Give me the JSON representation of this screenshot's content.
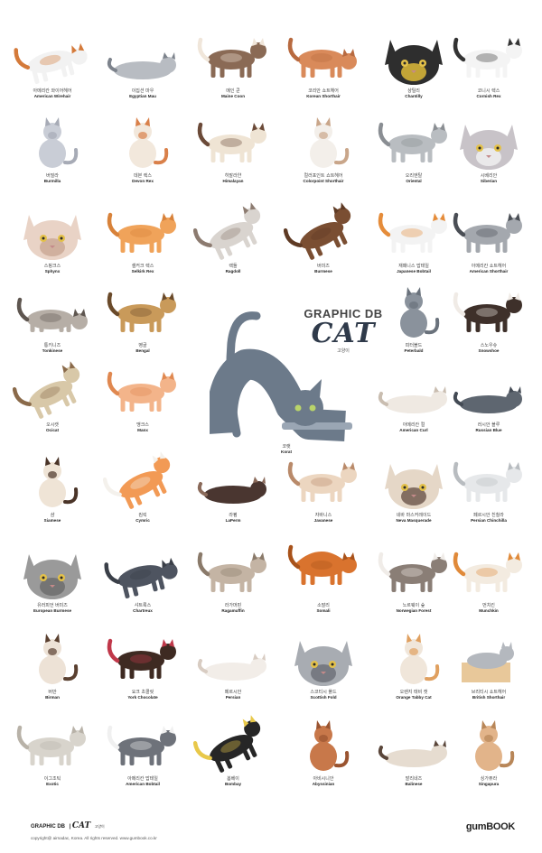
{
  "title": {
    "line1": "GRAPHIC DB",
    "line2": "CAT",
    "line3": "고양이"
  },
  "footer": {
    "brand": "GRAPHIC DB",
    "brand_cat": "CAT",
    "brand_ko": "고양이",
    "copyright": "copyright@ airnadac, Korea. All rights reserved.   www.gumbook.co.kr",
    "publisher": "gumBOOK"
  },
  "cats": [
    {
      "ko": "아메리칸 와이어헤어",
      "en": "American Wirehair",
      "body": "#f2f2f2",
      "accent": "#d47a3a",
      "pose": "stretch"
    },
    {
      "ko": "이집션 마우",
      "en": "Egyptian Mau",
      "body": "#b8bcc2",
      "accent": "#7d838c",
      "pose": "lie"
    },
    {
      "ko": "메인 쿤",
      "en": "Maine Coon",
      "body": "#8a6a55",
      "accent": "#f0e6da",
      "pose": "stand"
    },
    {
      "ko": "코리안 쇼트헤어",
      "en": "Korean Shorthair",
      "body": "#d98a5a",
      "accent": "#b86a40",
      "pose": "sniff"
    },
    {
      "ko": "샹틸리",
      "en": "Chantilly",
      "body": "#2e2e2e",
      "accent": "#e8c33a",
      "pose": "face"
    },
    {
      "ko": "코니시 렉스",
      "en": "Cornish Rex",
      "body": "#f4f4f4",
      "accent": "#333333",
      "pose": "stand"
    },
    {
      "ko": "버밀라",
      "en": "Burmilla",
      "body": "#c9cdd6",
      "accent": "#a7abb6",
      "pose": "sit"
    },
    {
      "ko": "데본 렉스",
      "en": "Devon Rex",
      "body": "#f2e8dc",
      "accent": "#d9804a",
      "pose": "sit"
    },
    {
      "ko": "히말라얀",
      "en": "Himalayan",
      "body": "#efe4d4",
      "accent": "#6b4a38",
      "pose": "stand"
    },
    {
      "ko": "컬러포인트 쇼트헤어",
      "en": "Colorpoint Shorthair",
      "body": "#f3efea",
      "accent": "#c9a68a",
      "pose": "sit"
    },
    {
      "ko": "오리엔탈",
      "en": "Oriental",
      "body": "#b9bdc1",
      "accent": "#8a8e93",
      "pose": "stand"
    },
    {
      "ko": "시베리안",
      "en": "Siberian",
      "body": "#c8c3c8",
      "accent": "#f2f2f2",
      "pose": "face"
    },
    {
      "ko": "스핑크스",
      "en": "Sphynx",
      "body": "#e9d3c6",
      "accent": "#c9a894",
      "pose": "face"
    },
    {
      "ko": "셀커크 렉스",
      "en": "Selkirk Rex",
      "body": "#f0a35a",
      "accent": "#d8823a",
      "pose": "stand"
    },
    {
      "ko": "랙돌",
      "en": "Ragdoll",
      "body": "#d9d4cf",
      "accent": "#8c7b70",
      "pose": "jump"
    },
    {
      "ko": "버미즈",
      "en": "Burmese",
      "body": "#7a4e32",
      "accent": "#5e3a24",
      "pose": "leap"
    },
    {
      "ko": "재패니스 밥테일",
      "en": "Japanese Bobtail",
      "body": "#f3f3f3",
      "accent": "#e58c3a",
      "pose": "stand"
    },
    {
      "ko": "아메리칸 쇼트헤어",
      "en": "American Shorthair",
      "body": "#a4a8ae",
      "accent": "#4a4e55",
      "pose": "stand"
    },
    {
      "ko": "통키니즈",
      "en": "Tonkinese",
      "body": "#b6aea6",
      "accent": "#5e5650",
      "pose": "crouch"
    },
    {
      "ko": "벵골",
      "en": "Bengal",
      "body": "#c99a5a",
      "accent": "#6a4a2a",
      "pose": "stand"
    },
    {
      "ko": "피터볼드",
      "en": "Peterbald",
      "body": "#8a929c",
      "accent": "#6a727c",
      "pose": "sit"
    },
    {
      "ko": "스노우슈",
      "en": "Snowshoe",
      "body": "#3e302a",
      "accent": "#f0ebe6",
      "pose": "stand"
    },
    {
      "ko": "오시캣",
      "en": "Ocicat",
      "body": "#d8c8a8",
      "accent": "#8a6a4a",
      "pose": "jump"
    },
    {
      "ko": "맹크스",
      "en": "Manx",
      "body": "#f3b48a",
      "accent": "#e08850",
      "pose": "stand"
    },
    {
      "ko": "아메리칸 컬",
      "en": "American Curl",
      "body": "#efe9e2",
      "accent": "#c9bdb0",
      "pose": "lie"
    },
    {
      "ko": "러시안 블루",
      "en": "Russian Blue",
      "body": "#5e6670",
      "accent": "#434a54",
      "pose": "lie"
    },
    {
      "ko": "샴",
      "en": "Siamese",
      "body": "#efe4d6",
      "accent": "#4a3428",
      "pose": "sit"
    },
    {
      "ko": "킴릭",
      "en": "Cymric",
      "body": "#f29a55",
      "accent": "#f4f1ec",
      "pose": "jump"
    },
    {
      "ko": "라펌",
      "en": "LaPerm",
      "body": "#4a3630",
      "accent": "#8a6a5a",
      "pose": "lie"
    },
    {
      "ko": "자바니스",
      "en": "Javanese",
      "body": "#ecd6c0",
      "accent": "#b98a6a",
      "pose": "stand"
    },
    {
      "ko": "네바 마스커레이드",
      "en": "Neva Masquerade",
      "body": "#e5d7c7",
      "accent": "#6a5448",
      "pose": "face"
    },
    {
      "ko": "페르시안 친칠라",
      "en": "Persian Chinchilla",
      "body": "#e6e8ea",
      "accent": "#b8bcc0",
      "pose": "stand"
    },
    {
      "ko": "유러피언 버미즈",
      "en": "European Burmese",
      "body": "#9a9a9a",
      "accent": "#6a6a6a",
      "pose": "face"
    },
    {
      "ko": "샤트룩스",
      "en": "Chartreux",
      "body": "#4e5460",
      "accent": "#3a3f48",
      "pose": "stretch"
    },
    {
      "ko": "라가머핀",
      "en": "Ragamuffin",
      "body": "#c4b4a4",
      "accent": "#8a7a6a",
      "pose": "stand"
    },
    {
      "ko": "소말리",
      "en": "Somali",
      "body": "#d9732e",
      "accent": "#a8521a",
      "pose": "arch"
    },
    {
      "ko": "노르웨이 숲",
      "en": "Norwegian Forest",
      "body": "#8a7e76",
      "accent": "#f0ece8",
      "pose": "stand"
    },
    {
      "ko": "먼치킨",
      "en": "Munchkin",
      "body": "#f3ebe0",
      "accent": "#e08a3a",
      "pose": "stand"
    },
    {
      "ko": "버만",
      "en": "Birman",
      "body": "#ede2d6",
      "accent": "#5a4030",
      "pose": "sit"
    },
    {
      "ko": "요크 초콜릿",
      "en": "York Chocolate",
      "body": "#3e2a22",
      "accent": "#c0384a",
      "pose": "play"
    },
    {
      "ko": "페르시안",
      "en": "Persian",
      "body": "#f2ede8",
      "accent": "#d8ccc2",
      "pose": "lie"
    },
    {
      "ko": "스코티시 폴드",
      "en": "Scottish Fold",
      "body": "#a8acb2",
      "accent": "#6a6e76",
      "pose": "face"
    },
    {
      "ko": "오렌지 태비 캣",
      "en": "Orange Tabby Cat",
      "body": "#f0e6da",
      "accent": "#e0a060",
      "pose": "sit"
    },
    {
      "ko": "브리티시 쇼트헤어",
      "en": "British Shorthair",
      "body": "#b4b8be",
      "accent": "#e8c89a",
      "pose": "box"
    },
    {
      "ko": "이그조틱",
      "en": "Exotic",
      "body": "#d8d4cc",
      "accent": "#b8b2a8",
      "pose": "stand"
    },
    {
      "ko": "아메리칸 밥테일",
      "en": "American Bobtail",
      "body": "#6e727a",
      "accent": "#f0f0f0",
      "pose": "stand"
    },
    {
      "ko": "봄베이",
      "en": "Bombay",
      "body": "#262626",
      "accent": "#e8c84a",
      "pose": "jump"
    },
    {
      "ko": "아비시니안",
      "en": "Abyssinian",
      "body": "#c8784a",
      "accent": "#9a5430",
      "pose": "sit"
    },
    {
      "ko": "발리네즈",
      "en": "Balinese",
      "body": "#e6dcd0",
      "accent": "#5a463a",
      "pose": "lie"
    },
    {
      "ko": "싱가퓨라",
      "en": "Singapura",
      "body": "#e2b48a",
      "accent": "#b88658",
      "pose": "sit"
    }
  ],
  "feature": {
    "ko": "코랫",
    "en": "Korat",
    "body": "#6c7a8a",
    "accent": "#9aa6b4"
  }
}
